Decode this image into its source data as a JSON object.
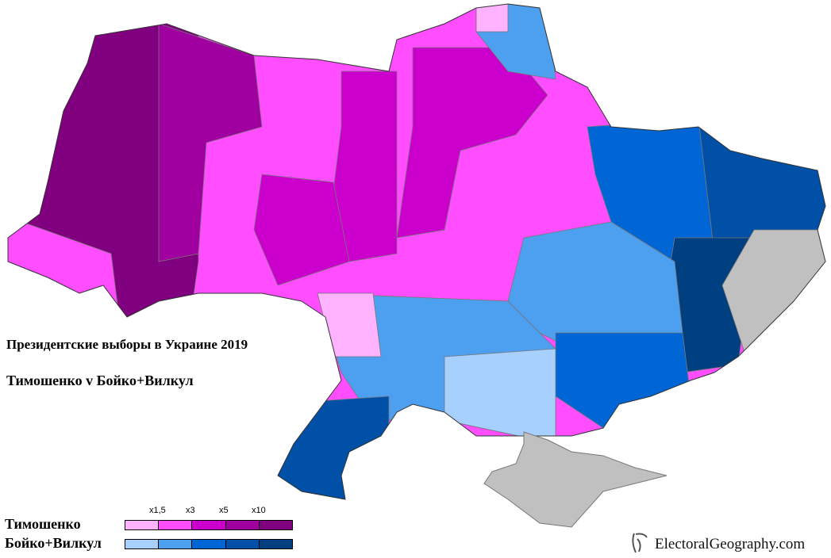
{
  "title": "Президентские выборы в Украине 2019",
  "subtitle": "Тимошенко v Бойко+Вилкул",
  "legend": {
    "ticks": [
      "x1,5",
      "x3",
      "x5",
      "x10"
    ],
    "series": [
      {
        "label": "Тимошенко",
        "colors": [
          "#ffb3ff",
          "#ff4dff",
          "#cc00cc",
          "#a000a0",
          "#800080"
        ]
      },
      {
        "label": "Бойко+Вилкул",
        "colors": [
          "#a8d0ff",
          "#4da0f0",
          "#0066d6",
          "#0050a8",
          "#003f80"
        ]
      }
    ],
    "no_data_color": "#c0c0c0"
  },
  "brand": "ElectoralGeography.com"
}
